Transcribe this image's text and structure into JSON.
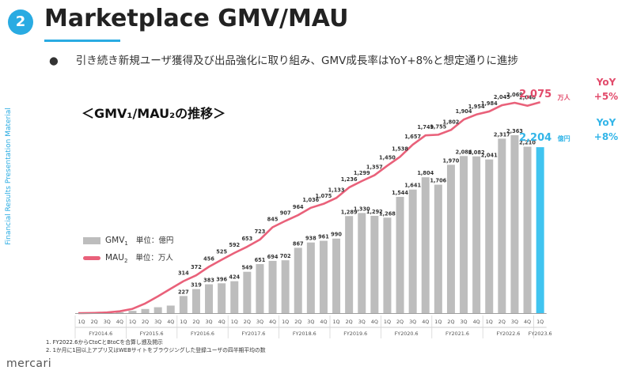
{
  "header": {
    "badge": "2",
    "title": "Marketplace GMV/MAU",
    "bullet": "引き続き新規ユーザ獲得及び出品強化に取り組み、GMV成長率はYoY+8%と想定通りに進捗"
  },
  "side_label": "Financial Results Presentation Material",
  "chart_subtitle": "＜GMV₁/MAU₂の推移＞",
  "legend": {
    "gmv_name": "GMV",
    "gmv_sub": "1",
    "gmv_unit": "単位：億円",
    "mau_name": "MAU",
    "mau_sub": "2",
    "mau_unit": "単位：万人"
  },
  "footnotes": [
    "1. FY2022.6からCtoCとBtoCを合算し遡及開示",
    "2. 1か月に1回以上アプリ又はWEBサイトをブラウジングした登録ユーザの四半期平均の数"
  ],
  "logo": "mercari",
  "colors": {
    "accent": "#29abe2",
    "bar": "#bdbdbd",
    "highlight_bar": "#40c4f0",
    "mau_line": "#e9617a",
    "mau_text": "#e24b6b",
    "gmv_text": "#33b5e8"
  },
  "chart_data": {
    "type": "bar",
    "quarters": [
      "1Q",
      "2Q",
      "3Q",
      "4Q",
      "1Q",
      "2Q",
      "3Q",
      "4Q",
      "1Q",
      "2Q",
      "3Q",
      "4Q",
      "1Q",
      "2Q",
      "3Q",
      "4Q",
      "1Q",
      "2Q",
      "3Q",
      "4Q",
      "1Q",
      "2Q",
      "3Q",
      "4Q",
      "1Q",
      "2Q",
      "3Q",
      "4Q",
      "1Q",
      "2Q",
      "3Q",
      "4Q",
      "1Q",
      "2Q",
      "3Q",
      "4Q",
      "1Q"
    ],
    "fiscal_years": [
      "FY2014.6",
      "FY2015.6",
      "FY2016.6",
      "FY2017.6",
      "FY2018.6",
      "FY2019.6",
      "FY2020.6",
      "FY2021.6",
      "FY2022.6",
      "FY2023.6"
    ],
    "series": [
      {
        "name": "GMV",
        "type": "bar",
        "values": [
          null,
          null,
          null,
          null,
          null,
          null,
          null,
          null,
          227,
          319,
          383,
          396,
          424,
          549,
          651,
          694,
          702,
          867,
          938,
          961,
          990,
          1289,
          1330,
          1292,
          1268,
          1544,
          1641,
          1804,
          1706,
          1970,
          2086,
          2082,
          2041,
          2317,
          2363,
          2210,
          2204
        ],
        "labels": [
          null,
          null,
          null,
          null,
          null,
          null,
          null,
          null,
          "227",
          "319",
          "383",
          "396",
          "424",
          "549",
          "651",
          "694",
          "702",
          "867",
          "938",
          "961",
          "990",
          "1,289",
          "1,330",
          "1,292",
          "1,268",
          "1,544",
          "1,641",
          "1,804",
          "1,706",
          "1,970",
          "2,086",
          "2,082",
          "2,041",
          "2,317",
          "2,363",
          "2,210",
          "2,204"
        ],
        "unit": "億円"
      },
      {
        "name": "MAU",
        "type": "line",
        "values": [
          null,
          null,
          null,
          null,
          null,
          null,
          null,
          null,
          314,
          372,
          456,
          525,
          592,
          653,
          723,
          845,
          907,
          964,
          1036,
          1075,
          1133,
          1236,
          1299,
          1357,
          1450,
          1538,
          1657,
          1749,
          1755,
          1802,
          1904,
          1954,
          1984,
          2045,
          2069,
          2040,
          2075
        ],
        "labels": [
          null,
          null,
          null,
          null,
          null,
          null,
          null,
          null,
          "314",
          "372",
          "456",
          "525",
          "592",
          "653",
          "723",
          "845",
          "907",
          "964",
          "1,036",
          "1,075",
          "1,133",
          "1,236",
          "1,299",
          "1,357",
          "1,450",
          "1,538",
          "1,657",
          "1,749",
          "1,755",
          "1,802",
          "1,904",
          "1,954",
          "1,984",
          "2,045",
          "2,069",
          "2,040",
          "2,075"
        ],
        "unit": "万人"
      }
    ],
    "annotations": {
      "mau_last": "2,075",
      "mau_unit": "万人",
      "mau_yoy_label": "YoY",
      "mau_yoy": "+5%",
      "gmv_last": "2,204",
      "gmv_unit": "億円",
      "gmv_yoy_label": "YoY",
      "gmv_yoy": "+8%"
    }
  }
}
